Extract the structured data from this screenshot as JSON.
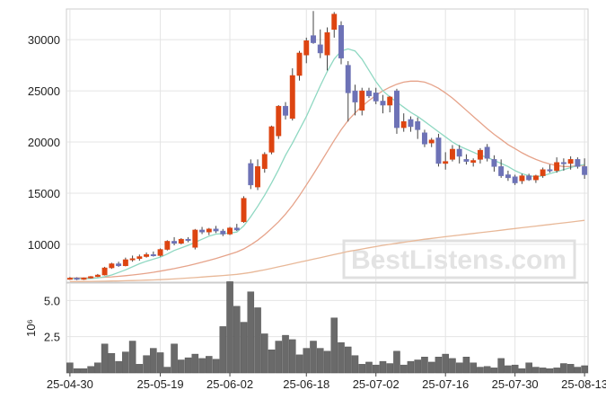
{
  "chart_data": [
    {
      "type": "candlestick",
      "x_tick_labels": [
        "25-04-30",
        "25-05-19",
        "25-06-02",
        "25-06-18",
        "25-07-02",
        "25-07-16",
        "25-07-30",
        "25-08-13"
      ],
      "x_tick_index": [
        0,
        13,
        23,
        34,
        44,
        54,
        64,
        74
      ],
      "ylim": [
        6300,
        33000
      ],
      "y_ticks": [
        10000,
        15000,
        20000,
        25000,
        30000
      ],
      "y_tick_labels": [
        "10000",
        "15000",
        "20000",
        "25000",
        "30000"
      ],
      "grid": true,
      "colors": {
        "up": "#dd4411",
        "down": "#6d72b6",
        "ma_short": "#8fd8c2",
        "ma_mid": "#e6a38a",
        "ma_long": "#e8b898"
      },
      "series_ohlc": [
        [
          6650,
          6800,
          6550,
          6700
        ],
        [
          6700,
          6780,
          6500,
          6580
        ],
        [
          6580,
          6750,
          6520,
          6700
        ],
        [
          6700,
          6900,
          6650,
          6850
        ],
        [
          6850,
          7100,
          6800,
          7000
        ],
        [
          7000,
          7800,
          6950,
          7700
        ],
        [
          7700,
          8200,
          7600,
          8100
        ],
        [
          8100,
          8300,
          7800,
          7900
        ],
        [
          7900,
          8700,
          7850,
          8500
        ],
        [
          8500,
          8900,
          8300,
          8600
        ],
        [
          8600,
          9000,
          8400,
          8800
        ],
        [
          8800,
          9200,
          8700,
          9000
        ],
        [
          9000,
          9300,
          8800,
          8900
        ],
        [
          8900,
          9600,
          8800,
          9500
        ],
        [
          9500,
          10400,
          9400,
          10300
        ],
        [
          10300,
          10700,
          9900,
          10100
        ],
        [
          10100,
          10600,
          10000,
          10500
        ],
        [
          10500,
          10700,
          10200,
          10400
        ],
        [
          9700,
          11500,
          9500,
          11400
        ],
        [
          11400,
          11700,
          11000,
          11200
        ],
        [
          11200,
          11600,
          10900,
          11500
        ],
        [
          11500,
          11800,
          11100,
          11300
        ],
        [
          11300,
          11500,
          10800,
          11000
        ],
        [
          11000,
          11700,
          10900,
          11600
        ],
        [
          11600,
          12000,
          11300,
          11400
        ],
        [
          12200,
          14700,
          12100,
          14500
        ],
        [
          17900,
          18300,
          15400,
          15800
        ],
        [
          15600,
          18300,
          15300,
          17600
        ],
        [
          17400,
          19000,
          17000,
          18800
        ],
        [
          19000,
          21600,
          18800,
          21500
        ],
        [
          20600,
          23600,
          20300,
          23500
        ],
        [
          23500,
          23900,
          22200,
          22600
        ],
        [
          22300,
          27200,
          22100,
          26500
        ],
        [
          26500,
          28900,
          26000,
          28700
        ],
        [
          28500,
          30200,
          27700,
          29900
        ],
        [
          30400,
          32800,
          29600,
          29700
        ],
        [
          29500,
          31000,
          28200,
          28700
        ],
        [
          28500,
          31200,
          27000,
          30700
        ],
        [
          31000,
          32700,
          30200,
          32500
        ],
        [
          31400,
          31800,
          27600,
          28200
        ],
        [
          27500,
          27900,
          22000,
          24800
        ],
        [
          25000,
          25600,
          22600,
          23900
        ],
        [
          23100,
          25300,
          22600,
          25000
        ],
        [
          25000,
          25300,
          24300,
          24500
        ],
        [
          24800,
          25300,
          23700,
          24000
        ],
        [
          24000,
          24600,
          22800,
          23600
        ],
        [
          23600,
          24500,
          22900,
          24400
        ],
        [
          25000,
          25200,
          20800,
          21400
        ],
        [
          21400,
          22800,
          21000,
          22000
        ],
        [
          22200,
          22500,
          21000,
          21500
        ],
        [
          22000,
          22400,
          20300,
          21200
        ],
        [
          20900,
          21200,
          19500,
          19800
        ],
        [
          19900,
          20400,
          19500,
          20200
        ],
        [
          20400,
          20800,
          17600,
          17900
        ],
        [
          17900,
          19000,
          17300,
          18100
        ],
        [
          18300,
          19700,
          18100,
          19300
        ],
        [
          19300,
          19700,
          17900,
          18600
        ],
        [
          18300,
          18800,
          17800,
          18100
        ],
        [
          18000,
          18400,
          17600,
          18200
        ],
        [
          18300,
          19400,
          17900,
          19200
        ],
        [
          19500,
          19800,
          18100,
          18400
        ],
        [
          18300,
          18700,
          17100,
          17600
        ],
        [
          17600,
          18300,
          16500,
          16700
        ],
        [
          16800,
          17200,
          16200,
          16500
        ],
        [
          16600,
          16800,
          15800,
          16000
        ],
        [
          16200,
          16900,
          15900,
          16700
        ],
        [
          16700,
          16900,
          16200,
          16300
        ],
        [
          16300,
          16800,
          16000,
          16700
        ],
        [
          16700,
          17500,
          16500,
          17300
        ],
        [
          17300,
          17800,
          17000,
          17200
        ],
        [
          17200,
          18500,
          17000,
          18000
        ],
        [
          18000,
          18400,
          17200,
          17900
        ],
        [
          17900,
          18600,
          17300,
          18300
        ],
        [
          18300,
          18500,
          17400,
          17600
        ],
        [
          17600,
          18400,
          16400,
          16800
        ]
      ],
      "ma_short": [
        6650,
        6640,
        6630,
        6650,
        6700,
        6840,
        7000,
        7250,
        7500,
        7800,
        8100,
        8350,
        8550,
        8750,
        9050,
        9400,
        9650,
        9900,
        10200,
        10500,
        10800,
        11000,
        11050,
        11100,
        11200,
        11800,
        12700,
        13700,
        14800,
        16000,
        17300,
        18700,
        19900,
        21200,
        22500,
        24000,
        25500,
        26900,
        28100,
        28900,
        29100,
        28900,
        28100,
        27000,
        25900,
        25000,
        24400,
        23900,
        23400,
        22900,
        22500,
        22000,
        21500,
        21000,
        20500,
        20000,
        19600,
        19300,
        19000,
        18700,
        18500,
        18200,
        17900,
        17600,
        17200,
        16900,
        16700,
        16600,
        16700,
        16900,
        17100,
        17300,
        17500,
        17700,
        17800
      ],
      "ma_mid": [
        6700,
        6710,
        6720,
        6730,
        6750,
        6780,
        6820,
        6870,
        6930,
        7000,
        7080,
        7170,
        7270,
        7380,
        7500,
        7630,
        7770,
        7920,
        8080,
        8250,
        8430,
        8620,
        8820,
        9030,
        9250,
        9550,
        9950,
        10400,
        10950,
        11550,
        12200,
        12950,
        13800,
        14750,
        15800,
        16850,
        17950,
        19050,
        20150,
        21200,
        22100,
        22850,
        23500,
        24050,
        24550,
        25000,
        25350,
        25650,
        25850,
        25950,
        25950,
        25850,
        25600,
        25250,
        24800,
        24300,
        23700,
        23100,
        22500,
        21900,
        21300,
        20750,
        20250,
        19750,
        19350,
        18950,
        18600,
        18300,
        18050,
        17850,
        17700,
        17600,
        17600,
        17700,
        17700
      ],
      "ma_long": [
        6350,
        6360,
        6370,
        6380,
        6390,
        6400,
        6410,
        6420,
        6440,
        6460,
        6480,
        6500,
        6520,
        6550,
        6580,
        6620,
        6660,
        6700,
        6750,
        6800,
        6850,
        6900,
        6950,
        7000,
        7060,
        7150,
        7250,
        7380,
        7500,
        7650,
        7800,
        7950,
        8100,
        8250,
        8400,
        8550,
        8700,
        8850,
        9000,
        9150,
        9300,
        9420,
        9540,
        9660,
        9780,
        9900,
        10000,
        10100,
        10200,
        10300,
        10400,
        10500,
        10580,
        10660,
        10740,
        10820,
        10900,
        10980,
        11060,
        11140,
        11220,
        11300,
        11380,
        11460,
        11540,
        11620,
        11700,
        11780,
        11860,
        11940,
        12020,
        12100,
        12180,
        12260,
        12340
      ]
    },
    {
      "type": "bar",
      "scale_label": "10⁶",
      "ylim": [
        0,
        6.2
      ],
      "y_ticks": [
        2.5,
        5.0
      ],
      "y_tick_labels": [
        "2.5",
        "5.0"
      ],
      "bar_color": "#6a6a6a",
      "values": [
        0.7,
        0.3,
        0.3,
        0.45,
        0.7,
        2.0,
        1.35,
        0.8,
        1.45,
        2.2,
        0.6,
        1.2,
        1.7,
        1.4,
        0.4,
        2.0,
        0.9,
        1.05,
        1.3,
        1.0,
        1.15,
        0.95,
        3.2,
        6.3,
        4.6,
        3.5,
        5.6,
        4.5,
        2.7,
        1.6,
        2.2,
        2.6,
        2.3,
        1.25,
        1.7,
        2.2,
        1.7,
        1.5,
        3.8,
        2.1,
        1.8,
        1.2,
        0.6,
        0.75,
        0.55,
        0.8,
        0.65,
        1.5,
        0.55,
        0.8,
        0.9,
        1.1,
        0.75,
        1.1,
        1.3,
        1.0,
        0.7,
        1.1,
        0.7,
        0.4,
        0.45,
        0.35,
        1.0,
        0.5,
        0.55,
        0.3,
        0.7,
        0.4,
        0.35,
        0.3,
        0.35,
        0.65,
        0.6,
        0.4,
        0.5
      ]
    }
  ],
  "watermark": "BestListens.com"
}
